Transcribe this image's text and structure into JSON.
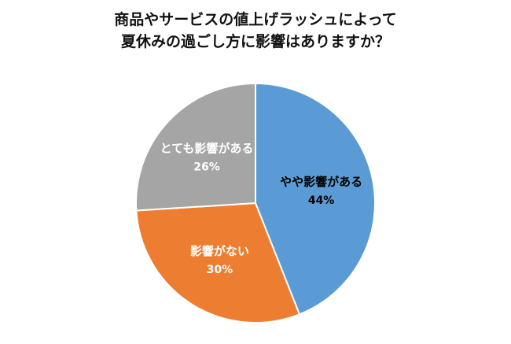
{
  "chart_data": {
    "type": "pie",
    "title_line1": "商品やサービスの値上げラッシュによって",
    "title_line2": "夏休みの過ごし方に影響はありますか？",
    "direction": "clockwise",
    "start_angle_deg": 0,
    "legend_position": "none",
    "labels_inside": true,
    "slices": [
      {
        "label": "やや影響がある",
        "value": 44,
        "pct_label": "44%",
        "color": "#5B9BD5",
        "text_color": "#000000"
      },
      {
        "label": "影響がない",
        "value": 30,
        "pct_label": "30%",
        "color": "#ED7D31",
        "text_color": "#FFFFFF"
      },
      {
        "label": "とても影響がある",
        "value": 26,
        "pct_label": "26%",
        "color": "#A5A5A5",
        "text_color": "#FFFFFF"
      }
    ]
  }
}
